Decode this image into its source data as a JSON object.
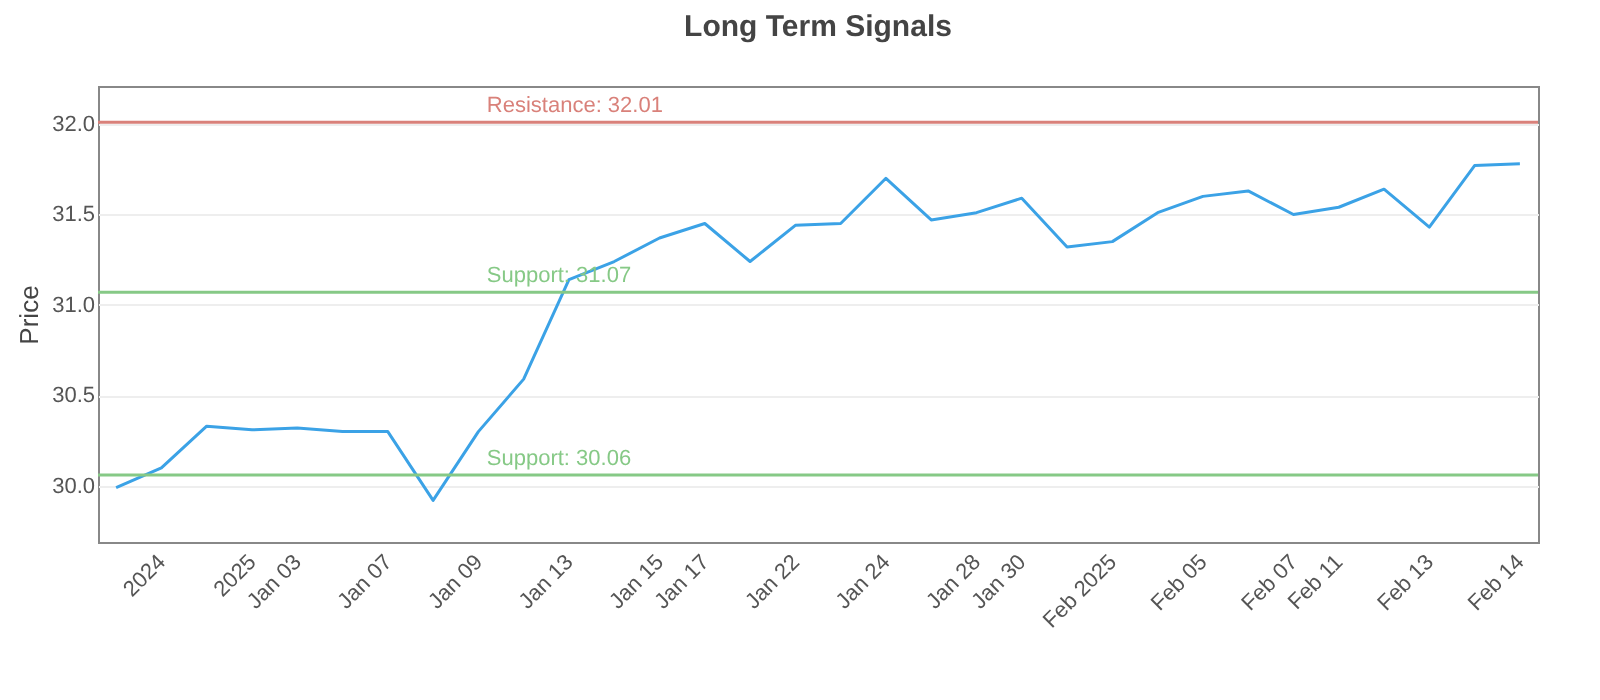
{
  "chart_data": {
    "type": "line",
    "title": "Long Term Signals",
    "ylabel": "Price",
    "categories": [
      null,
      "2024",
      null,
      "2025",
      "Jan 03",
      null,
      "Jan 07",
      null,
      "Jan 09",
      null,
      "Jan 13",
      null,
      "Jan 15",
      "Jan 17",
      null,
      "Jan 22",
      null,
      "Jan 24",
      null,
      "Jan 28",
      "Jan 30",
      null,
      "Feb 2025",
      null,
      "Feb 05",
      null,
      "Feb 07",
      "Feb 11",
      null,
      "Feb 13",
      null,
      "Feb 14"
    ],
    "series": [
      {
        "color": "#3ba2e6",
        "values": [
          29.99,
          30.1,
          30.33,
          30.31,
          30.32,
          30.3,
          30.3,
          29.92,
          30.3,
          30.59,
          31.14,
          31.24,
          31.37,
          31.45,
          31.24,
          31.44,
          31.45,
          31.7,
          31.47,
          31.51,
          31.59,
          31.32,
          31.35,
          31.51,
          31.6,
          31.63,
          31.5,
          31.54,
          31.64,
          31.43,
          31.77,
          31.78
        ]
      }
    ],
    "ylim": [
      29.69,
      32.21
    ],
    "yticks": [
      {
        "value": 30,
        "label": "30.0"
      },
      {
        "value": 30.5,
        "label": "30.5"
      },
      {
        "value": 31,
        "label": "31.0"
      },
      {
        "value": 31.5,
        "label": "31.5"
      },
      {
        "value": 32,
        "label": "32.0"
      }
    ],
    "grid": "y",
    "legend": false,
    "marker": "none",
    "line_style": "solid",
    "ref_lines": [
      {
        "axis": "y",
        "value": 32.01,
        "label": "Resistance: 32.01",
        "color": "#d9817a"
      },
      {
        "axis": "y",
        "value": 31.07,
        "label": "Support: 31.07",
        "color": "#86c986"
      },
      {
        "axis": "y",
        "value": 30.06,
        "label": "Support: 30.06",
        "color": "#86c986"
      }
    ]
  }
}
